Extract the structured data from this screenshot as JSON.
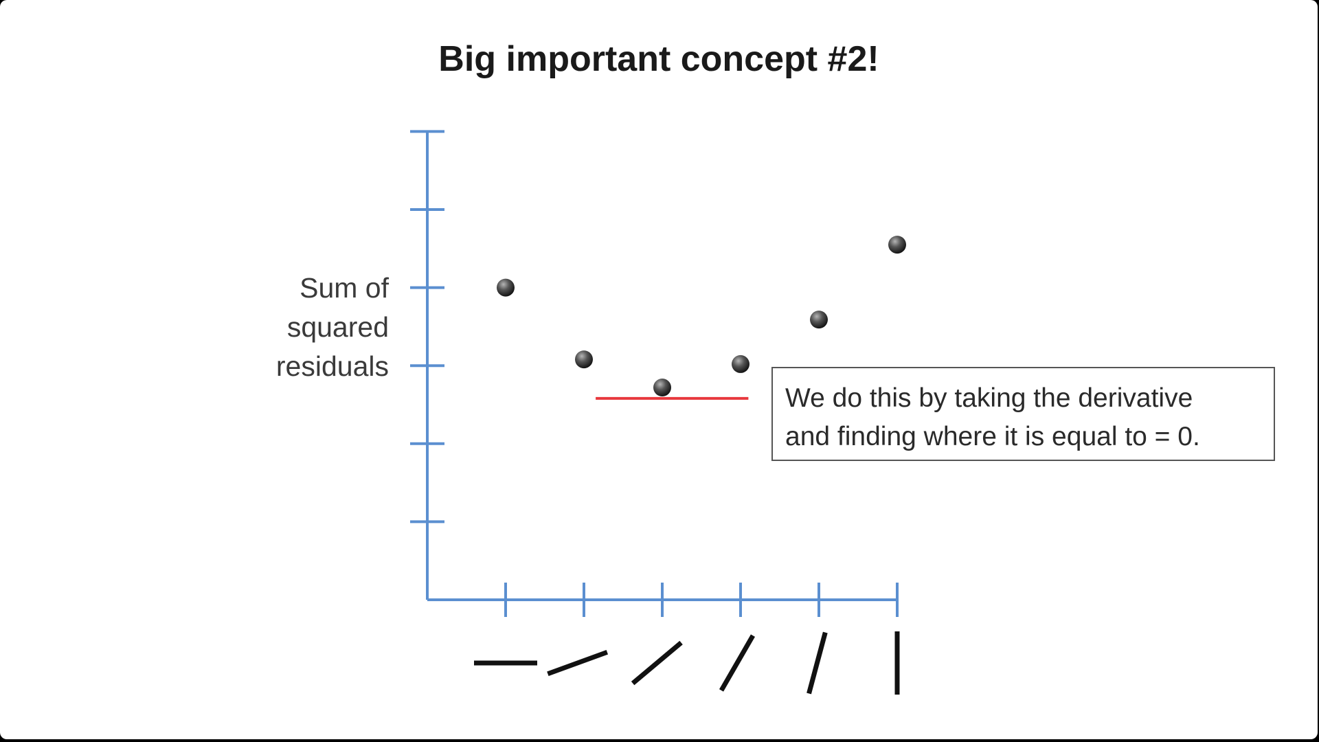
{
  "slide": {
    "title": "Big important concept #2!",
    "callout_lines": [
      "We do this by taking the derivative",
      "and finding where it is equal to = 0."
    ]
  },
  "chart_data": {
    "type": "scatter",
    "title": "Big important concept #2!",
    "ylabel_lines": [
      "Sum of",
      "squared",
      "residuals"
    ],
    "xlabel": "",
    "x": [
      1,
      2,
      3,
      4,
      5,
      6
    ],
    "y": [
      4,
      3.08,
      2.72,
      3.02,
      3.59,
      4.55
    ],
    "x_tick_glyphs": "line segments rotated from horizontal (0°) to vertical (90°)",
    "x_tick_slopes_deg": [
      0,
      20,
      40,
      60,
      75,
      90
    ],
    "xlim": [
      0,
      6
    ],
    "ylim": [
      0,
      6
    ],
    "y_ticks": [
      1,
      2,
      3,
      4,
      5,
      6
    ],
    "zero_slope_line": {
      "x": [
        2.15,
        4.1
      ],
      "y": 2.58,
      "color": "#e8383d"
    },
    "grid": false,
    "legend": "none",
    "colors": {
      "axis": "#5b8fd0",
      "point": "#4a4a4a",
      "tangent": "#e8383d",
      "tick_glyph": "#111111"
    }
  }
}
